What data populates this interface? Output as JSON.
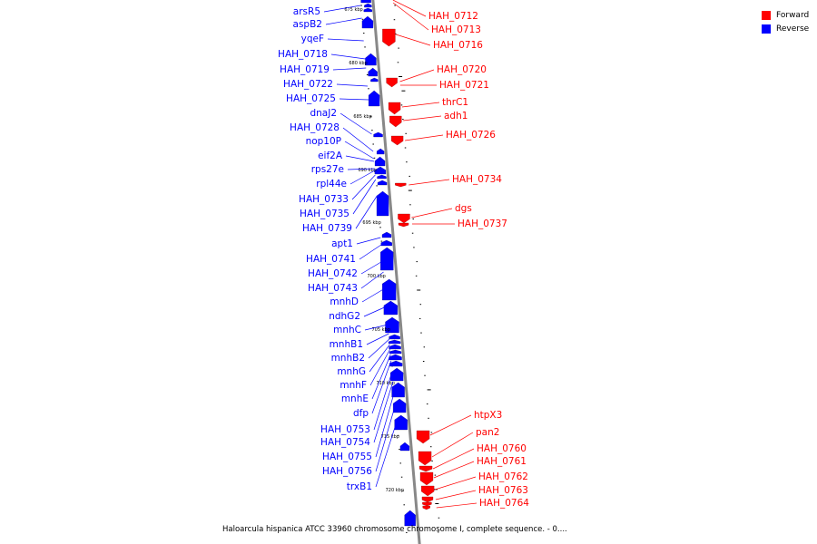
{
  "map": {
    "caption": "Haloarcula hispanica ATCC 33960 chromosome chromosome I, complete sequence. - 0....",
    "colors": {
      "forward": "#ff0000",
      "reverse": "#0000ff",
      "backbone": "#888888"
    },
    "legend": [
      {
        "label": "Forward",
        "color": "#ff0000"
      },
      {
        "label": "Reverse",
        "color": "#0000ff"
      }
    ],
    "scale_labels": [
      "675 kbp",
      "680 kbp",
      "685 kbp",
      "690 kbp",
      "695 kbp",
      "700 kbp",
      "705 kbp",
      "710 kbp",
      "715 kbp",
      "720 kbp"
    ],
    "reverse_genes": [
      "arsR5",
      "aspB2",
      "yqeF",
      "HAH_0718",
      "HAH_0719",
      "HAH_0722",
      "HAH_0725",
      "dnaJ2",
      "HAH_0728",
      "nop10P",
      "eif2A",
      "rps27e",
      "rpl44e",
      "HAH_0733",
      "HAH_0735",
      "HAH_0739",
      "apt1",
      "HAH_0741",
      "HAH_0742",
      "HAH_0743",
      "mnhD",
      "ndhG2",
      "mnhC",
      "mnhB1",
      "mnhB2",
      "mnhG",
      "mnhF",
      "mnhE",
      "dfp",
      "HAH_0753",
      "HAH_0754",
      "HAH_0755",
      "HAH_0756",
      "trxB1"
    ],
    "forward_genes": [
      "HAH_0712",
      "HAH_0713",
      "HAH_0716",
      "HAH_0720",
      "HAH_0721",
      "thrC1",
      "adh1",
      "HAH_0726",
      "HAH_0734",
      "dgs",
      "HAH_0737",
      "htpX3",
      "pan2",
      "HAH_0760",
      "HAH_0761",
      "HAH_0762",
      "HAH_0763",
      "HAH_0764"
    ]
  }
}
